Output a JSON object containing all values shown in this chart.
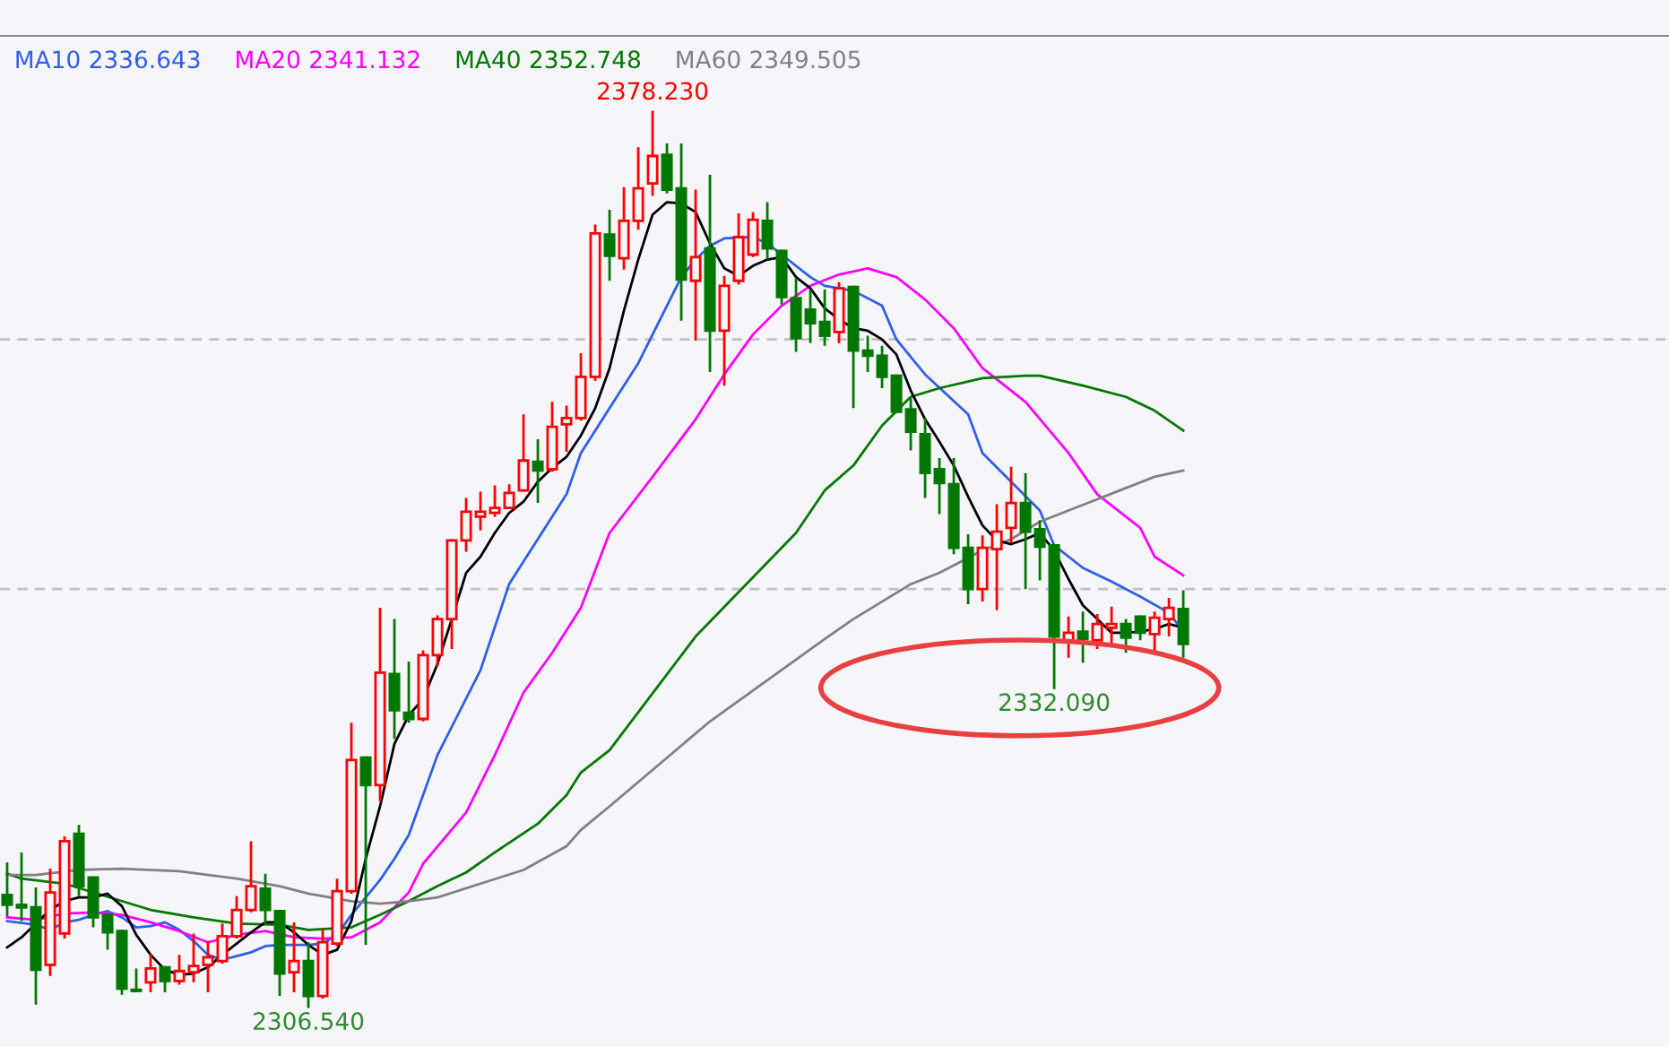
{
  "chart_data": {
    "type": "candlestick",
    "categories": [
      null,
      null,
      null,
      null,
      null,
      null,
      null,
      null,
      null,
      null,
      null,
      null,
      null,
      null,
      null,
      null,
      null,
      null,
      null,
      null,
      null,
      null,
      null,
      null,
      null,
      null,
      null,
      null,
      null,
      null,
      null,
      null,
      null,
      null,
      null,
      null,
      null,
      null,
      null,
      null,
      null,
      null,
      null,
      null,
      null,
      null,
      null,
      null,
      null,
      null,
      null,
      null,
      null,
      null,
      null,
      null,
      null,
      null,
      null,
      null,
      null,
      null,
      null,
      null,
      null,
      null,
      null,
      null,
      null,
      null,
      null,
      null,
      null,
      null,
      null,
      null,
      null,
      null,
      null,
      null,
      null,
      null,
      null
    ],
    "ohlc": [
      [
        2315.5,
        2318.0,
        2313.9,
        2314.7
      ],
      [
        2314.7,
        2318.8,
        2313.5,
        2314.5
      ],
      [
        2314.5,
        2316.0,
        2306.8,
        2309.5
      ],
      [
        2309.9,
        2317.5,
        2309.1,
        2315.7
      ],
      [
        2312.4,
        2320.1,
        2312.1,
        2319.8
      ],
      [
        2320.4,
        2321.0,
        2315.5,
        2316.2
      ],
      [
        2316.9,
        2316.9,
        2313.0,
        2313.7
      ],
      [
        2313.9,
        2313.9,
        2311.2,
        2312.5
      ],
      [
        2312.6,
        2312.6,
        2307.6,
        2308.0
      ],
      [
        2307.9,
        2309.5,
        2307.8,
        2307.8
      ],
      [
        2308.5,
        2310.7,
        2307.8,
        2309.6
      ],
      [
        2309.7,
        2309.7,
        2307.8,
        2308.6
      ],
      [
        2308.6,
        2310.6,
        2308.4,
        2309.4
      ],
      [
        2309.3,
        2312.3,
        2308.6,
        2309.8
      ],
      [
        2309.9,
        2311.7,
        2307.8,
        2310.5
      ],
      [
        2310.2,
        2313.1,
        2310.1,
        2312.2
      ],
      [
        2312.2,
        2315.3,
        2312.1,
        2314.3
      ],
      [
        2314.3,
        2319.7,
        2314.2,
        2316.2
      ],
      [
        2316.0,
        2317.1,
        2313.3,
        2314.3
      ],
      [
        2314.2,
        2314.2,
        2307.5,
        2309.2
      ],
      [
        2309.3,
        2313.2,
        2307.8,
        2310.2
      ],
      [
        2310.2,
        2311.6,
        2306.54,
        2307.4
      ],
      [
        2307.4,
        2312.7,
        2307.3,
        2311.7
      ],
      [
        2311.6,
        2316.7,
        2311.5,
        2315.8
      ],
      [
        2315.8,
        2329.2,
        2315.7,
        2326.3
      ],
      [
        2326.5,
        2326.5,
        2311.6,
        2324.3
      ],
      [
        2324.3,
        2338.4,
        2323.1,
        2333.3
      ],
      [
        2333.2,
        2337.5,
        2328.1,
        2330.3
      ],
      [
        2330.1,
        2334.1,
        2329.4,
        2329.6
      ],
      [
        2329.6,
        2335.0,
        2329.5,
        2334.7
      ],
      [
        2334.7,
        2337.8,
        2333.9,
        2337.6
      ],
      [
        2337.6,
        2343.9,
        2335.3,
        2343.9
      ],
      [
        2343.9,
        2347.2,
        2343.1,
        2346.2
      ],
      [
        2345.8,
        2347.7,
        2344.8,
        2346.2
      ],
      [
        2346.1,
        2348.2,
        2345.9,
        2346.5
      ],
      [
        2346.5,
        2348.3,
        2346.5,
        2347.7
      ],
      [
        2347.9,
        2353.9,
        2347.9,
        2350.3
      ],
      [
        2350.2,
        2351.9,
        2347.0,
        2349.5
      ],
      [
        2349.6,
        2354.9,
        2349.5,
        2353.0
      ],
      [
        2353.2,
        2354.6,
        2351.1,
        2353.7
      ],
      [
        2353.7,
        2358.8,
        2353.6,
        2357.0
      ],
      [
        2357.0,
        2369.1,
        2356.8,
        2368.5
      ],
      [
        2368.4,
        2370.3,
        2364.8,
        2366.7
      ],
      [
        2366.5,
        2372.1,
        2365.7,
        2369.5
      ],
      [
        2369.5,
        2375.3,
        2368.9,
        2372.1
      ],
      [
        2372.5,
        2378.23,
        2371.6,
        2374.7
      ],
      [
        2374.8,
        2375.6,
        2371.8,
        2372.0
      ],
      [
        2372.1,
        2375.6,
        2361.6,
        2364.8
      ],
      [
        2364.7,
        2371.9,
        2360.0,
        2366.6
      ],
      [
        2367.3,
        2373.1,
        2357.5,
        2360.7
      ],
      [
        2360.7,
        2365.0,
        2356.4,
        2364.3
      ],
      [
        2364.7,
        2370.0,
        2364.5,
        2368.2
      ],
      [
        2366.8,
        2370.1,
        2366.7,
        2369.6
      ],
      [
        2369.5,
        2370.9,
        2366.5,
        2367.3
      ],
      [
        2367.1,
        2367.1,
        2362.9,
        2363.4
      ],
      [
        2363.3,
        2364.8,
        2359.1,
        2360.1
      ],
      [
        2362.4,
        2363.9,
        2359.8,
        2361.3
      ],
      [
        2361.4,
        2363.9,
        2359.6,
        2360.3
      ],
      [
        2360.6,
        2364.5,
        2359.8,
        2364.1
      ],
      [
        2364.2,
        2364.2,
        2354.6,
        2359.1
      ],
      [
        2359.1,
        2360.2,
        2357.5,
        2358.7
      ],
      [
        2358.7,
        2359.4,
        2356.2,
        2357.0
      ],
      [
        2357.1,
        2357.1,
        2354.2,
        2354.2
      ],
      [
        2354.4,
        2355.2,
        2351.2,
        2352.6
      ],
      [
        2352.4,
        2353.6,
        2347.4,
        2349.3
      ],
      [
        2349.6,
        2350.4,
        2346.1,
        2348.5
      ],
      [
        2348.4,
        2350.4,
        2342.9,
        2343.3
      ],
      [
        2343.3,
        2344.3,
        2338.9,
        2340.0
      ],
      [
        2340.0,
        2344.2,
        2339.1,
        2343.3
      ],
      [
        2343.2,
        2346.7,
        2338.4,
        2344.6
      ],
      [
        2344.9,
        2349.7,
        2343.8,
        2346.9
      ],
      [
        2346.9,
        2349.2,
        2340.1,
        2344.6
      ],
      [
        2344.8,
        2345.4,
        2340.8,
        2343.4
      ],
      [
        2343.5,
        2343.5,
        2332.09,
        2336.2
      ],
      [
        2335.8,
        2337.7,
        2334.6,
        2336.5
      ],
      [
        2336.6,
        2338.1,
        2334.2,
        2336.0
      ],
      [
        2335.9,
        2337.9,
        2335.3,
        2337.2
      ],
      [
        2336.9,
        2338.5,
        2335.6,
        2337.2
      ],
      [
        2337.2,
        2337.5,
        2335.0,
        2336.1
      ],
      [
        2337.8,
        2337.8,
        2336.0,
        2336.5
      ],
      [
        2336.4,
        2338.1,
        2335.1,
        2337.7
      ],
      [
        2337.6,
        2339.2,
        2336.3,
        2338.5
      ],
      [
        2338.4,
        2339.8,
        2334.6,
        2335.6
      ]
    ],
    "series": [
      {
        "type": "line",
        "name": "MA10 2336.643",
        "color": "#2f5fe8",
        "values": [
          2313.4,
          null,
          2313.1,
          2312.7,
          2313.3,
          2313.5,
          2313.9,
          2314.2,
          2313.7,
          2312.9,
          2313.0,
          2313.3,
          2312.7,
          2311.8,
          2310.7,
          2310.3,
          2310.6,
          2310.9,
          2311.4,
          2311.5,
          2311.5,
          2311.5,
          2311.6,
          2312.3,
          2313.9,
          2315.3,
          2316.7,
          2318.4,
          2320.3,
          null,
          2326.7,
          null,
          null,
          2333.5,
          null,
          2340.4,
          null,
          null,
          null,
          2347.6,
          2350.9,
          null,
          2354.5,
          null,
          2358.1,
          null,
          2362.7,
          2365.0,
          2366.4,
          2367.5,
          2368.1,
          null,
          2368.2,
          2367.7,
          2366.8,
          null,
          2365.0,
          2364.3,
          null,
          2363.9,
          null,
          2362.7,
          2360.0,
          null,
          2357.2,
          null,
          null,
          2354.0,
          2350.9,
          null,
          2348.6,
          null,
          2346.3,
          2343.5,
          null,
          2341.7,
          null,
          2340.6,
          null,
          2339.4,
          null,
          2338.1,
          2336.6
        ]
      },
      {
        "type": "line",
        "name": "MA20 2341.132",
        "color": "#ff00ff",
        "values": [
          2313.7,
          null,
          2313.5,
          null,
          2314.0,
          null,
          2314.1,
          null,
          2313.9,
          null,
          2313.3,
          null,
          2312.6,
          null,
          2311.7,
          null,
          2312.3,
          null,
          2312.6,
          null,
          2312.1,
          null,
          2312.0,
          null,
          2312.1,
          null,
          2313.3,
          null,
          2315.7,
          2318.0,
          null,
          null,
          2322.1,
          null,
          2326.7,
          null,
          2331.7,
          null,
          2334.9,
          null,
          2338.5,
          null,
          2344.5,
          null,
          null,
          2349.0,
          null,
          null,
          2353.6,
          null,
          2357.2,
          null,
          2360.4,
          null,
          2362.7,
          null,
          2364.3,
          null,
          2365.2,
          null,
          2365.7,
          null,
          2365.0,
          null,
          2363.2,
          null,
          2360.9,
          null,
          2357.7,
          null,
          null,
          2355.0,
          null,
          null,
          2350.9,
          null,
          2347.6,
          null,
          null,
          2344.9,
          2342.6,
          null,
          2341.1
        ]
      },
      {
        "type": "line",
        "name": "MA40 2352.748",
        "color": "#007800",
        "values": [
          2317.2,
          2316.8,
          null,
          null,
          2316.4,
          null,
          2315.7,
          null,
          2315.0,
          null,
          2314.3,
          null,
          null,
          2313.7,
          null,
          null,
          2313.2,
          null,
          null,
          2313.1,
          null,
          2312.7,
          null,
          null,
          2312.9,
          null,
          2313.9,
          null,
          2315.0,
          null,
          2316.2,
          null,
          2317.3,
          null,
          2318.9,
          null,
          null,
          2321.2,
          null,
          2323.5,
          2325.3,
          null,
          2327.1,
          null,
          null,
          null,
          null,
          null,
          2336.2,
          null,
          null,
          null,
          null,
          null,
          null,
          2344.5,
          null,
          2347.9,
          null,
          2349.9,
          null,
          2353.1,
          null,
          2355.4,
          null,
          2356.1,
          null,
          null,
          2356.9,
          null,
          null,
          2357.1,
          2357.1,
          null,
          null,
          2356.3,
          null,
          null,
          2355.4,
          null,
          2354.3,
          null,
          2352.7
        ]
      },
      {
        "type": "line",
        "name": "MA60 2349.505",
        "color": "#808080",
        "values": [
          2317.1,
          null,
          2317.1,
          null,
          null,
          2317.5,
          null,
          null,
          2317.6,
          null,
          null,
          null,
          2317.4,
          null,
          null,
          null,
          2316.8,
          null,
          null,
          2316.2,
          null,
          2315.6,
          null,
          null,
          2315.0,
          null,
          2314.8,
          null,
          2315.0,
          null,
          2315.3,
          null,
          null,
          2316.4,
          null,
          null,
          2317.5,
          null,
          null,
          2319.4,
          2320.7,
          null,
          2322.6,
          null,
          null,
          null,
          null,
          null,
          null,
          2329.4,
          null,
          null,
          null,
          null,
          null,
          null,
          null,
          2336.0,
          null,
          2337.6,
          null,
          2339.0,
          null,
          2340.4,
          null,
          2341.3,
          null,
          null,
          2343.1,
          null,
          2344.0,
          null,
          2345.4,
          null,
          2346.3,
          null,
          2347.2,
          null,
          2348.1,
          null,
          2349.0,
          null,
          2349.5
        ]
      },
      {
        "type": "line",
        "color": "#000000",
        "values": [
          2311.3,
          2312.1,
          2313.2,
          2314.3,
          2315.0,
          2315.3,
          2315.3,
          2315.6,
          2314.6,
          2312.3,
          2310.7,
          2309.5,
          2309.1,
          2309.2,
          2309.7,
          2310.7,
          2311.6,
          2312.5,
          2313.3,
          2313.3,
          2312.5,
          2311.5,
          2310.7,
          2311.1,
          2313.4,
          2318.4,
          2322.6,
          2327.6,
          2329.9,
          2331.2,
          2334.0,
          2337.6,
          2341.3,
          2342.6,
          2344.5,
          2346.1,
          2347.0,
          2348.6,
          2349.7,
          2350.6,
          2352.3,
          2354.5,
          2357.7,
          2362.3,
          2366.4,
          2370.0,
          2371.0,
          2370.9,
          2370.2,
          2367.7,
          2365.7,
          2365.1,
          2365.9,
          2366.4,
          2366.6,
          2365.0,
          2364.1,
          2362.5,
          2361.6,
          2360.9,
          2360.7,
          2360.0,
          2358.8,
          2355.9,
          2353.6,
          2351.8,
          2349.9,
          2347.4,
          2345.1,
          2343.9,
          2343.6,
          2344.0,
          2344.5,
          2343.1,
          2340.8,
          2338.7,
          2337.6,
          2336.5,
          2336.5,
          2336.6,
          2336.8,
          2337.2,
          2336.9
        ]
      }
    ],
    "ref_lines": [
      {
        "axis": "y",
        "value": 2360,
        "color": "#c0c0c0",
        "line_style": "dashed"
      },
      {
        "axis": "y",
        "value": 2340,
        "color": "#c0c0c0",
        "line_style": "dashed"
      }
    ],
    "annotations": [
      {
        "text": "2378.230",
        "y": 2378.23
      },
      {
        "text": "2306.540",
        "y": 2306.54
      },
      {
        "text": "2332.090",
        "y": 2332.09
      }
    ],
    "legend": "top left"
  }
}
